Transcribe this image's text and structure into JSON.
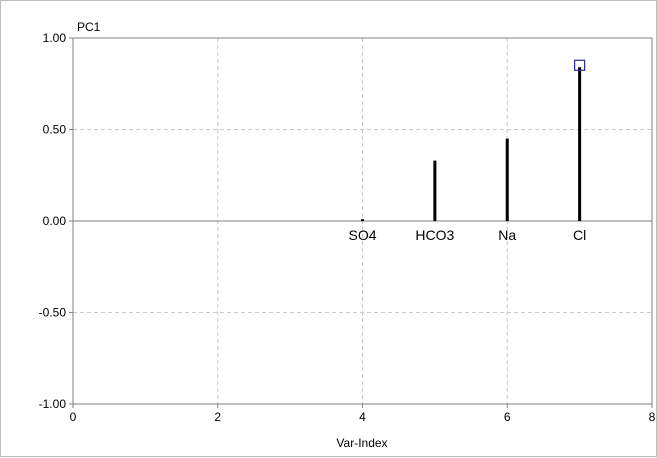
{
  "chart_data": {
    "type": "bar",
    "ylabel": "PC1",
    "xlabel": "Var-Index",
    "xlim": [
      0,
      8
    ],
    "ylim": [
      -1.0,
      1.0
    ],
    "x_ticks": [
      0,
      2,
      4,
      6,
      8
    ],
    "y_ticks": [
      -1.0,
      -0.5,
      0.0,
      0.5,
      1.0
    ],
    "y_tick_labels": [
      "-1.00",
      "-0.50",
      "0.00",
      "0.50",
      "1.00"
    ],
    "grid": true,
    "points": [
      {
        "label": "SO4",
        "x": 4,
        "y": 0.01
      },
      {
        "label": "HCO3",
        "x": 5,
        "y": 0.33
      },
      {
        "label": "Na",
        "x": 6,
        "y": 0.45
      },
      {
        "label": "Cl",
        "x": 7,
        "y": 0.84
      }
    ],
    "selected_point_label": "Cl",
    "colors": {
      "stem": "#000000",
      "grid": "#c8c8c8",
      "zero_line": "#7f7f7f",
      "selection_marker": "#2a2a9a"
    }
  }
}
